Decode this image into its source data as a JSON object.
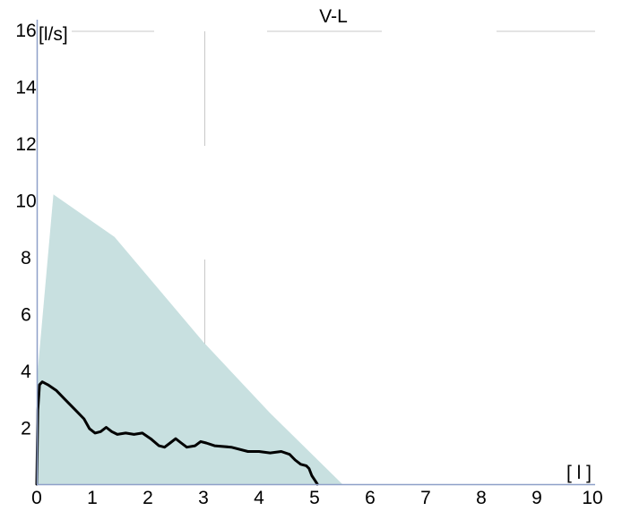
{
  "chart_data": {
    "type": "area",
    "title": "V-L",
    "xlabel": "[ l ]",
    "ylabel": "[l/s]",
    "xlim": [
      0,
      10
    ],
    "ylim": [
      0,
      16
    ],
    "x_ticks": [
      "0",
      "1",
      "2",
      "3",
      "4",
      "5",
      "6",
      "7",
      "8",
      "9",
      "10"
    ],
    "y_ticks": [
      "2",
      "4",
      "6",
      "8",
      "10",
      "12",
      "14",
      "16"
    ],
    "grid": false,
    "colors": {
      "predicted_area": "#c8e0e0",
      "measured_curve": "#000000",
      "axis": "#8ea0c8",
      "guide": "#c8c8c8"
    },
    "series": [
      {
        "kind": "area",
        "points": [
          [
            0.0,
            0.0
          ],
          [
            0.0,
            3.6
          ],
          [
            0.3,
            10.2
          ],
          [
            1.4,
            8.7
          ],
          [
            3.0,
            5.0
          ],
          [
            4.2,
            2.5
          ],
          [
            5.5,
            0.0
          ]
        ]
      },
      {
        "kind": "line",
        "points": [
          [
            0.0,
            0.0
          ],
          [
            0.02,
            2.6
          ],
          [
            0.05,
            3.5
          ],
          [
            0.1,
            3.6
          ],
          [
            0.2,
            3.5
          ],
          [
            0.35,
            3.3
          ],
          [
            0.5,
            3.0
          ],
          [
            0.7,
            2.6
          ],
          [
            0.85,
            2.3
          ],
          [
            0.95,
            1.95
          ],
          [
            1.05,
            1.8
          ],
          [
            1.15,
            1.85
          ],
          [
            1.25,
            2.0
          ],
          [
            1.35,
            1.85
          ],
          [
            1.45,
            1.75
          ],
          [
            1.6,
            1.8
          ],
          [
            1.75,
            1.75
          ],
          [
            1.9,
            1.8
          ],
          [
            2.05,
            1.6
          ],
          [
            2.2,
            1.35
          ],
          [
            2.3,
            1.3
          ],
          [
            2.4,
            1.45
          ],
          [
            2.5,
            1.6
          ],
          [
            2.6,
            1.45
          ],
          [
            2.7,
            1.3
          ],
          [
            2.85,
            1.35
          ],
          [
            2.95,
            1.5
          ],
          [
            3.05,
            1.45
          ],
          [
            3.2,
            1.35
          ],
          [
            3.5,
            1.3
          ],
          [
            3.8,
            1.15
          ],
          [
            4.0,
            1.15
          ],
          [
            4.2,
            1.1
          ],
          [
            4.4,
            1.15
          ],
          [
            4.55,
            1.05
          ],
          [
            4.65,
            0.85
          ],
          [
            4.75,
            0.7
          ],
          [
            4.85,
            0.65
          ],
          [
            4.9,
            0.55
          ],
          [
            4.95,
            0.3
          ],
          [
            5.0,
            0.15
          ],
          [
            5.05,
            0.0
          ]
        ]
      }
    ]
  }
}
